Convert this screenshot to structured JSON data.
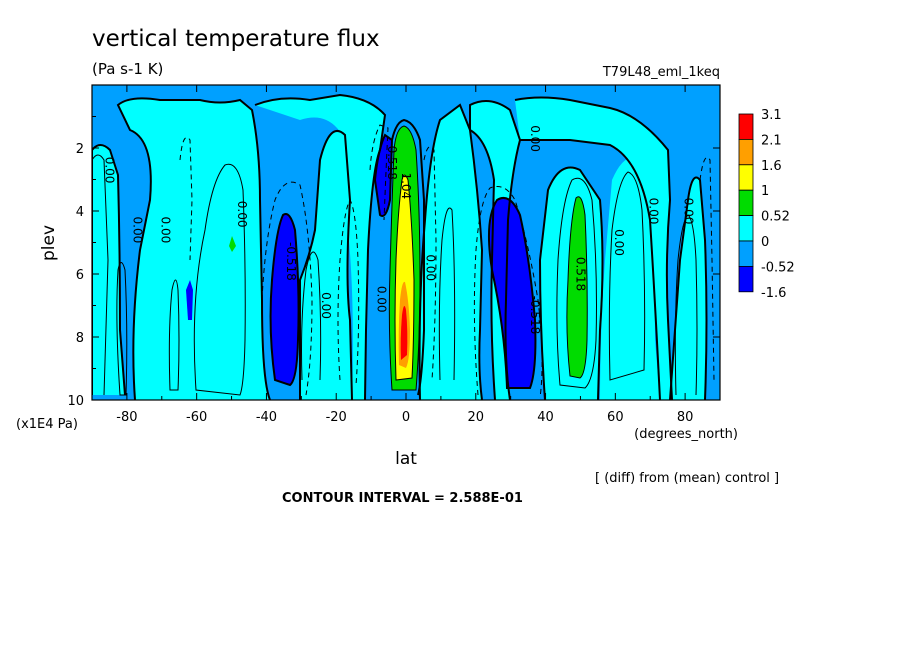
{
  "chart_data": {
    "type": "contour",
    "title": "vertical temperature flux",
    "units": "(Pa s-1 K)",
    "run_label": "T79L48_eml_1keq",
    "xlabel": "lat",
    "x_unit_label": "(degrees_north)",
    "ylabel": "plev",
    "y_unit_label": "(x1E4 Pa)",
    "xlim": [
      -90,
      90
    ],
    "ylim": [
      10,
      0
    ],
    "x_ticks": [
      -80,
      -60,
      -40,
      -20,
      0,
      20,
      40,
      60,
      80
    ],
    "x_tick_labels": [
      "-80",
      "-60",
      "-40",
      "-20",
      "0",
      "20",
      "40",
      "60",
      "80"
    ],
    "y_ticks": [
      2,
      4,
      6,
      8,
      10
    ],
    "y_tick_labels": [
      "2",
      "4",
      "6",
      "8",
      "10"
    ],
    "diff_note": "[ (diff) from (mean) control ]",
    "contour_interval_text": "CONTOUR INTERVAL = 2.588E-01",
    "colorbar": {
      "levels": [
        "3.1",
        "2.1",
        "1.6",
        "1",
        "0.52",
        "0",
        "-0.52",
        "-1.6"
      ],
      "colors": [
        "#ff0000",
        "#ff9f00",
        "#ffff00",
        "#00dc00",
        "#00ffff",
        "#00a0ff",
        "#0000ff"
      ]
    },
    "colors": {
      "c_neg2": "#0000ff",
      "c_neg1": "#00a0ff",
      "c_zero": "#00ffff",
      "c_pos1": "#00dc00",
      "c_pos2": "#ffff00",
      "c_pos3": "#ff9f00",
      "c_pos4": "#ff0000"
    },
    "contour_labels": [
      {
        "text": "0.00",
        "lat": -85,
        "p": 2.7
      },
      {
        "text": "0.00",
        "lat": -77,
        "p": 4.6
      },
      {
        "text": "0.00",
        "lat": -69,
        "p": 4.6
      },
      {
        "text": "0.00",
        "lat": -47,
        "p": 4.1
      },
      {
        "text": "-0.518",
        "lat": -33,
        "p": 5.6
      },
      {
        "text": "0.00",
        "lat": -23,
        "p": 7.0
      },
      {
        "text": "0.00",
        "lat": -7,
        "p": 6.8
      },
      {
        "text": "-0.518",
        "lat": -4,
        "p": 2.4
      },
      {
        "text": "1.04",
        "lat": 0,
        "p": 3.2
      },
      {
        "text": "0.00",
        "lat": 7,
        "p": 5.8
      },
      {
        "text": "0.00",
        "lat": 37,
        "p": 1.7
      },
      {
        "text": "-0.518",
        "lat": 37,
        "p": 7.3
      },
      {
        "text": "0.518",
        "lat": 50,
        "p": 6.0
      },
      {
        "text": "0.00",
        "lat": 61,
        "p": 5.0
      },
      {
        "text": "0.00",
        "lat": 71,
        "p": 4.0
      },
      {
        "text": "0.00",
        "lat": 81,
        "p": 4.0
      }
    ]
  }
}
